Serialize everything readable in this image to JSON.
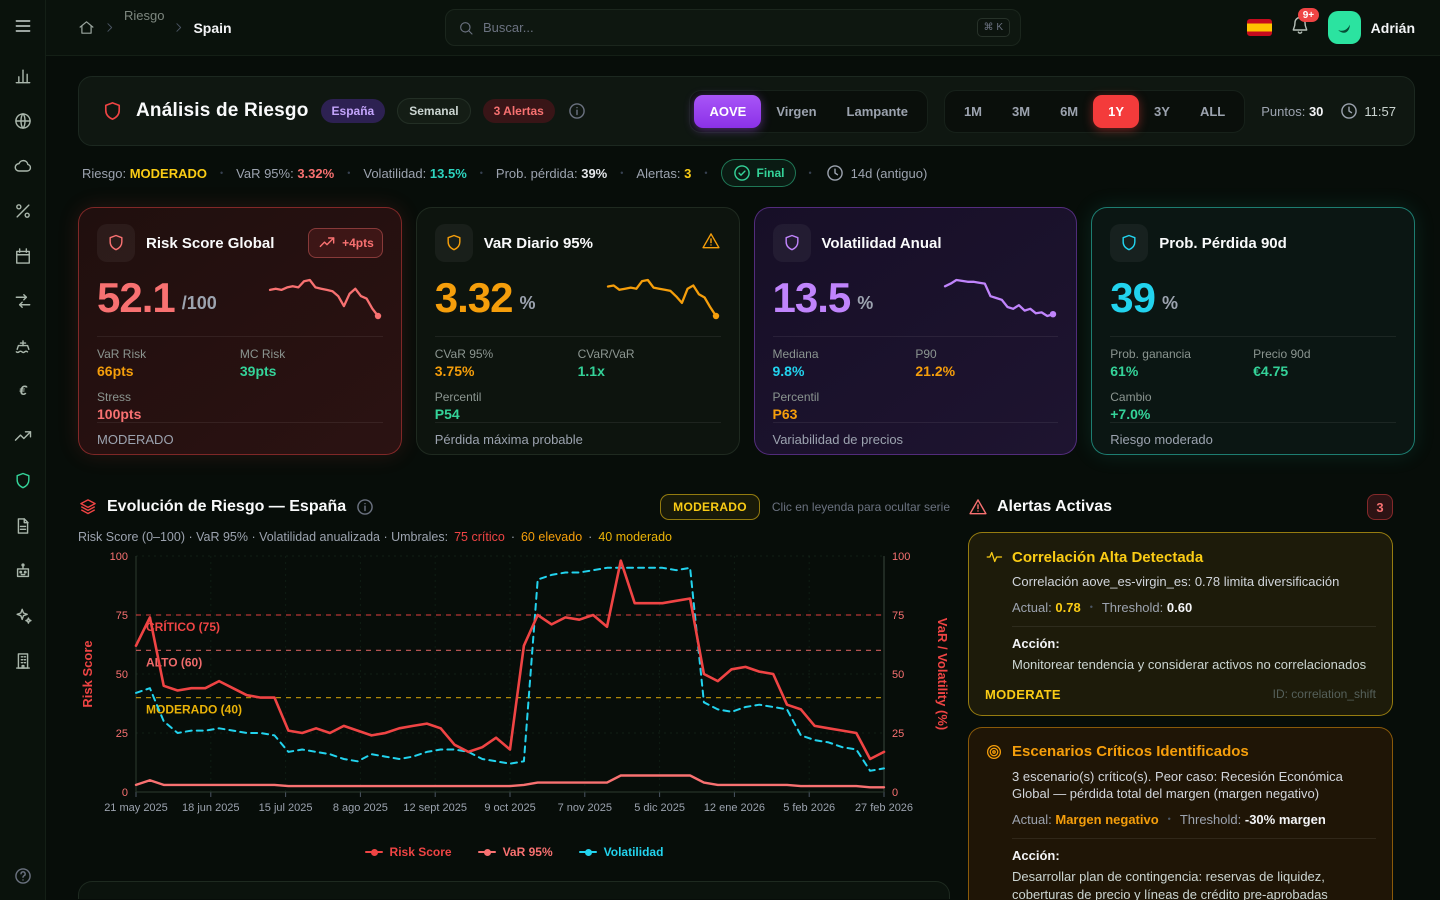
{
  "navbar": {
    "breadcrumb": {
      "parent": "Riesgo",
      "current": "Spain"
    },
    "search": {
      "placeholder": "Buscar...",
      "shortcut": "⌘ K"
    },
    "bell_badge": "9+",
    "user_name": "Adrián"
  },
  "sidebar": {
    "active_item": "risk-shield"
  },
  "header": {
    "title": "Análisis de Riesgo",
    "region_badge": "España",
    "frequency_badge": "Semanal",
    "alerts_badge": "3 Alertas",
    "product_tabs": [
      {
        "label": "AOVE",
        "active": true
      },
      {
        "label": "Virgen",
        "active": false
      },
      {
        "label": "Lampante",
        "active": false
      }
    ],
    "range_tabs": [
      {
        "label": "1M",
        "active": false
      },
      {
        "label": "3M",
        "active": false
      },
      {
        "label": "6M",
        "active": false
      },
      {
        "label": "1Y",
        "active": true
      },
      {
        "label": "3Y",
        "active": false
      },
      {
        "label": "ALL",
        "active": false
      }
    ],
    "points_label": "Puntos:",
    "points_value": "30",
    "time": "11:57"
  },
  "status_bar": {
    "sep": "•",
    "items": [
      {
        "label": "Riesgo:",
        "value": "MODERADO",
        "color": "#facc15"
      },
      {
        "label": "VaR 95%:",
        "value": "3.32%",
        "color": "#f87171"
      },
      {
        "label": "Volatilidad:",
        "value": "13.5%",
        "color": "#2dd4bf"
      },
      {
        "label": "Prob. pérdida:",
        "value": "39%",
        "color": "#e5e7eb"
      },
      {
        "label": "Alertas:",
        "value": "3",
        "color": "#facc15"
      }
    ],
    "final_badge": "Final",
    "age": "14d (antiguo)"
  },
  "cards": [
    {
      "title": "Risk Score Global",
      "badge": "+4pts",
      "value": "52.1",
      "unit": "/100",
      "accent": "#f87171",
      "spark": [
        55,
        56,
        55,
        57,
        58,
        57,
        62,
        63,
        57,
        56,
        55,
        54,
        50,
        42,
        52,
        56,
        50,
        48,
        40,
        34
      ],
      "stats": [
        {
          "label": "VaR Risk",
          "value": "66pts",
          "color": "#f59e0b"
        },
        {
          "label": "MC Risk",
          "value": "39pts",
          "color": "#34d399"
        },
        {
          "label": "Stress",
          "value": "100pts",
          "color": "#f87171"
        }
      ],
      "footer": "MODERADO"
    },
    {
      "title": "VaR Diario 95%",
      "value": "3.32",
      "unit": "%",
      "accent": "#f59e0b",
      "spark": [
        57,
        58,
        54,
        55,
        56,
        55,
        62,
        63,
        56,
        55,
        54,
        53,
        48,
        42,
        55,
        58,
        50,
        47,
        38,
        30
      ],
      "stats": [
        {
          "label": "CVaR 95%",
          "value": "3.75%",
          "color": "#f59e0b"
        },
        {
          "label": "CVaR/VaR",
          "value": "1.1x",
          "color": "#34d399"
        },
        {
          "label": "Percentil",
          "value": "P54",
          "color": "#34d399"
        }
      ],
      "footer": "Pérdida máxima probable"
    },
    {
      "title": "Volatilidad Anual",
      "value": "13.5",
      "unit": "%",
      "accent": "#c084fc",
      "spark": [
        75,
        78,
        82,
        81,
        80,
        80,
        79,
        78,
        64,
        62,
        60,
        52,
        50,
        54,
        48,
        50,
        45,
        46,
        42,
        44
      ],
      "stats": [
        {
          "label": "Mediana",
          "value": "9.8%",
          "color": "#22d3ee"
        },
        {
          "label": "P90",
          "value": "21.2%",
          "color": "#f59e0b"
        },
        {
          "label": "Percentil",
          "value": "P63",
          "color": "#f59e0b"
        }
      ],
      "footer": "Variabilidad de precios"
    },
    {
      "title": "Prob. Pérdida 90d",
      "value": "39",
      "unit": "%",
      "accent": "#22d3ee",
      "spark": [],
      "stats": [
        {
          "label": "Prob. ganancia",
          "value": "61%",
          "color": "#34d399"
        },
        {
          "label": "Precio 90d",
          "value": "€4.75",
          "color": "#34d399"
        },
        {
          "label": "Cambio",
          "value": "+7.0%",
          "color": "#34d399"
        }
      ],
      "footer": "Riesgo moderado"
    }
  ],
  "chart_section": {
    "title": "Evolución de Riesgo — España",
    "badge": "MODERADO",
    "hint": "Clic en leyenda para ocultar serie",
    "subtitle": "Risk Score (0–100) · VaR 95% · Volatilidad anualizada · Umbrales:",
    "dot": "·",
    "umbral_critico": "75 crítico",
    "umbral_elevado": "60 elevado",
    "umbral_moderado": "40 moderado",
    "colors": {
      "critico": "#ef4444",
      "elevado": "#f59e0b",
      "moderado": "#eab308"
    }
  },
  "chart_data": {
    "type": "line",
    "title": "Evolución de Riesgo — España",
    "x_ticks": [
      "21 may 2025",
      "18 jun 2025",
      "15 jul 2025",
      "8 ago 2025",
      "12 sept 2025",
      "9 oct 2025",
      "7 nov 2025",
      "5 dic 2025",
      "12 ene 2026",
      "5 feb 2026",
      "27 feb 2026"
    ],
    "y_left": {
      "label": "Risk Score",
      "ticks": [
        0,
        25,
        50,
        75,
        100
      ],
      "range": [
        0,
        100
      ]
    },
    "y_right": {
      "label": "VaR / Volatility (%)",
      "ticks": [
        0,
        25,
        50,
        75,
        100
      ],
      "range": [
        0,
        100
      ]
    },
    "grid": true,
    "legend_position": "bottom",
    "thresholds": [
      {
        "value": 75,
        "label": "CRÍTICO (75)",
        "color": "#ef4444"
      },
      {
        "value": 60,
        "label": "ALTO (60)",
        "color": "#ef6b6b"
      },
      {
        "value": 40,
        "label": "MODERADO (40)",
        "color": "#eab308"
      }
    ],
    "series": [
      {
        "name": "Risk Score",
        "color": "#ef4444",
        "style": "solid",
        "width": 2.6,
        "values": [
          62,
          74,
          45,
          43,
          44,
          44,
          47,
          44,
          41,
          40,
          40,
          26,
          25,
          27,
          25,
          28,
          26,
          24,
          25,
          27,
          28,
          29,
          27,
          20,
          17,
          19,
          23,
          18,
          62,
          75,
          71,
          74,
          73,
          75,
          70,
          98,
          80,
          80,
          80,
          81,
          82,
          50,
          47,
          52,
          53,
          51,
          50,
          37,
          35,
          28,
          27,
          26,
          25,
          14,
          17
        ]
      },
      {
        "name": "VaR 95%",
        "color": "#f87171",
        "style": "solid",
        "width": 2.4,
        "values": [
          3,
          5,
          3,
          3,
          3,
          3,
          3,
          3,
          3,
          3,
          3,
          2.5,
          2.5,
          2.5,
          2.5,
          2.5,
          2.5,
          2.5,
          2.5,
          2.5,
          2.5,
          2.5,
          2.5,
          2.5,
          2.5,
          2.5,
          2.5,
          2.5,
          3,
          4,
          4,
          4,
          4,
          4,
          4,
          7,
          7,
          7,
          7,
          7,
          7,
          4,
          3,
          3,
          3,
          3,
          3,
          3,
          2.5,
          2.5,
          2.5,
          2.5,
          2.5,
          2,
          2
        ]
      },
      {
        "name": "Volatilidad",
        "color": "#22d3ee",
        "style": "dashed",
        "width": 2,
        "values": [
          42,
          44,
          30,
          25,
          26,
          26,
          27,
          26,
          25,
          25,
          24,
          17,
          18,
          17,
          16,
          14,
          13,
          16,
          15,
          14,
          15,
          17,
          18,
          18,
          17,
          14,
          13,
          12,
          13,
          90,
          92,
          93,
          93,
          94,
          95,
          95,
          95,
          95,
          95,
          94,
          95,
          38,
          35,
          34,
          36,
          37,
          36,
          35,
          24,
          22,
          21,
          19,
          18,
          9,
          10
        ]
      }
    ]
  },
  "alerts_panel": {
    "title": "Alertas Activas",
    "count": "3",
    "alerts": [
      {
        "accent": "#facc15",
        "title": "Correlación Alta Detectada",
        "description": "Correlación aove_es-virgin_es: 0.78 limita diversificación",
        "actual_label": "Actual:",
        "actual": "0.78",
        "threshold_label": "Threshold:",
        "threshold": "0.60",
        "action_label": "Acción:",
        "action": "Monitorear tendencia y considerar activos no correlacionados",
        "level": "MODERATE",
        "id": "ID: correlation_shift"
      },
      {
        "accent": "#f59e0b",
        "title": "Escenarios Críticos Identificados",
        "description": "3 escenario(s) crítico(s). Peor caso: Recesión Económica Global — pérdida total del margen (margen negativo)",
        "actual_label": "Actual:",
        "actual": "Margen negativo",
        "threshold_label": "Threshold:",
        "threshold": "-30% margen",
        "action_label": "Acción:",
        "action": "Desarrollar plan de contingencia: reservas de liquidez, coberturas de precio y líneas de crédito pre-aprobadas"
      }
    ]
  }
}
